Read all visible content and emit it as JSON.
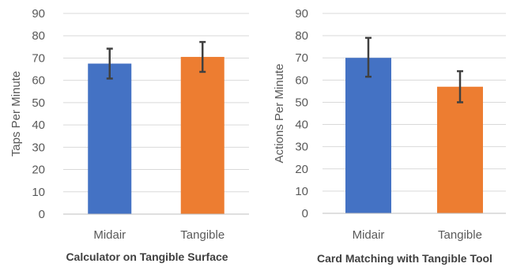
{
  "chart_data": [
    {
      "type": "bar",
      "title": "Calculator on Tangible Surface",
      "xlabel": "",
      "ylabel": "Taps Per Minute",
      "ylim": [
        0,
        90
      ],
      "yticks": [
        0,
        10,
        20,
        30,
        40,
        50,
        60,
        70,
        80,
        90
      ],
      "categories": [
        "Midair",
        "Tangible"
      ],
      "values": [
        67.5,
        70.5
      ],
      "error_low": [
        60.8,
        63.8
      ],
      "error_high": [
        74.2,
        77.2
      ],
      "colors": [
        "#4472C4",
        "#ED7D31"
      ],
      "grid": true
    },
    {
      "type": "bar",
      "title": "Card Matching with Tangible Tool",
      "xlabel": "",
      "ylabel": "Actions Per Minute",
      "ylim": [
        0,
        90
      ],
      "yticks": [
        0,
        10,
        20,
        30,
        40,
        50,
        60,
        70,
        80,
        90
      ],
      "categories": [
        "Midair",
        "Tangible"
      ],
      "values": [
        70,
        57
      ],
      "error_low": [
        61.5,
        50
      ],
      "error_high": [
        79,
        64
      ],
      "colors": [
        "#4472C4",
        "#ED7D31"
      ],
      "grid": true
    }
  ]
}
